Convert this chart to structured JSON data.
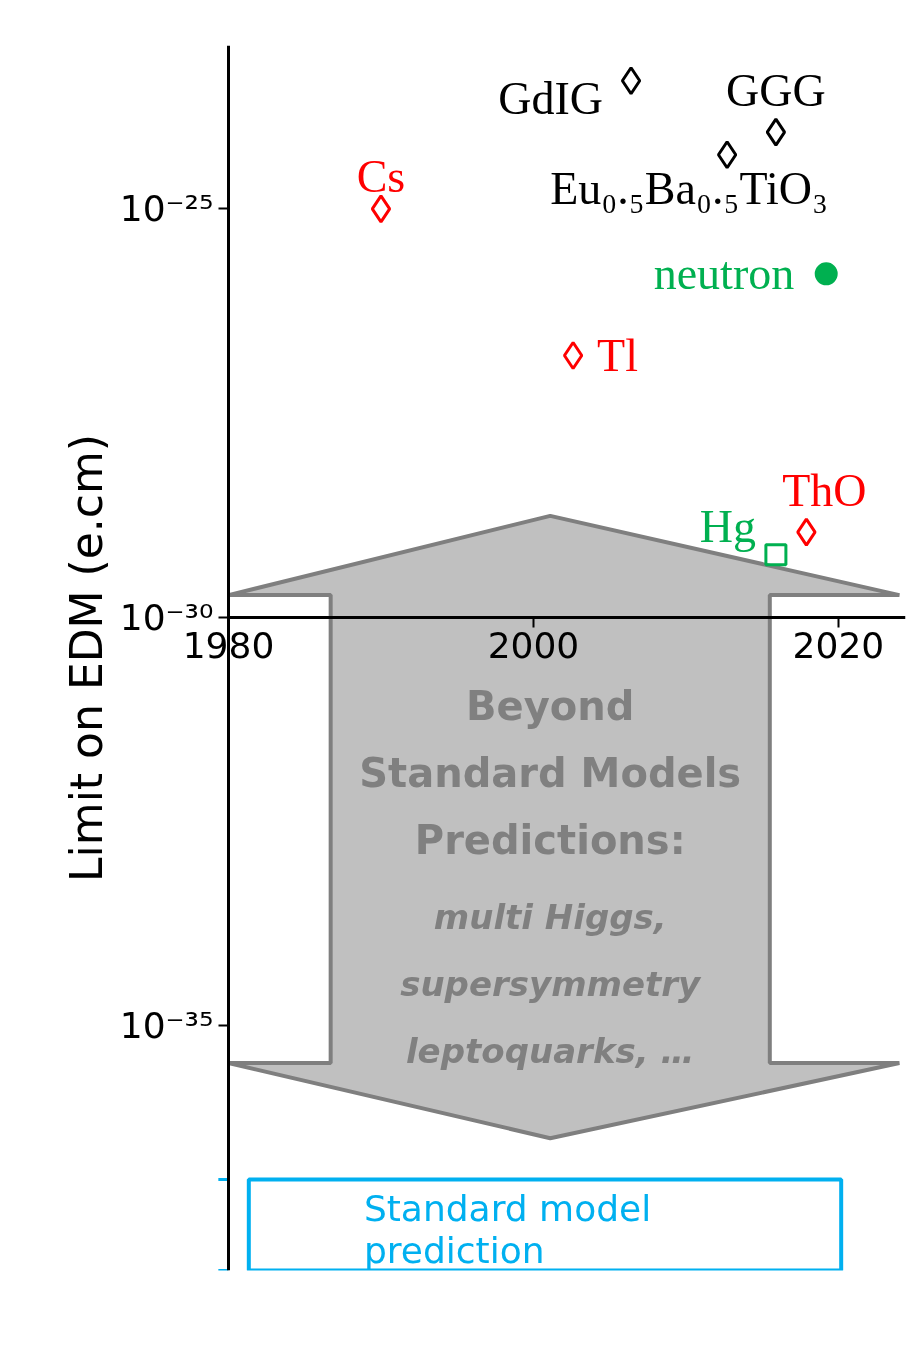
{
  "chart_data": {
    "type": "scatter",
    "ylabel": "Limit on EDM (e.cm)",
    "log": true,
    "grid": false,
    "xlim": [
      1980,
      2024.4
    ],
    "ylim": [
      1e-38,
      1e-23
    ],
    "xticks": [
      1980,
      2000,
      2020
    ],
    "yticks": [
      {
        "value": 1e-25,
        "label": "10⁻²⁵"
      },
      {
        "value": 1e-30,
        "label": "10⁻³⁰"
      },
      {
        "value": 1e-35,
        "label": "10⁻³⁵"
      }
    ],
    "series": [
      {
        "name": "Cs",
        "color": "#ff0000",
        "marker": "diamond",
        "x": [
          1990.0
        ],
        "values": [
          1e-25
        ]
      },
      {
        "name": "Tl",
        "color": "#ff0000",
        "marker": "diamond",
        "x": [
          2002.6
        ],
        "values": [
          1.6e-27
        ]
      },
      {
        "name": "ThO",
        "color": "#ff0000",
        "marker": "diamond",
        "x": [
          2017.9
        ],
        "values": [
          1.1e-29
        ]
      },
      {
        "name": "GdIG",
        "color": "#000000",
        "marker": "diamond",
        "x": [
          2006.4
        ],
        "values": [
          3.7e-24
        ]
      },
      {
        "name": "GGG",
        "color": "#000000",
        "marker": "diamond",
        "x": [
          2015.9
        ],
        "values": [
          8.7e-25
        ]
      },
      {
        "name": "Eu₀.₅Ba₀.₅TiO₃",
        "color": "#000000",
        "marker": "diamond",
        "x": [
          2012.7
        ],
        "values": [
          4.6e-25
        ]
      },
      {
        "name": "neutron",
        "color": "#00b050",
        "marker": "circle",
        "x": [
          2019.2
        ],
        "values": [
          1.6e-26
        ]
      },
      {
        "name": "Hg",
        "color": "#00b050",
        "marker": "square",
        "x": [
          2015.9
        ],
        "values": [
          5.8e-30
        ]
      }
    ],
    "bands": [
      {
        "axis": "y",
        "from": 1e-38,
        "to": 1.3e-37,
        "label": "Standard model prediction",
        "color": "#00b0f0"
      }
    ],
    "annotations": [
      "Beyond",
      "Standard Models",
      "Predictions:",
      "multi Higgs,",
      "supersymmetry",
      "leptoquarks, …"
    ]
  }
}
